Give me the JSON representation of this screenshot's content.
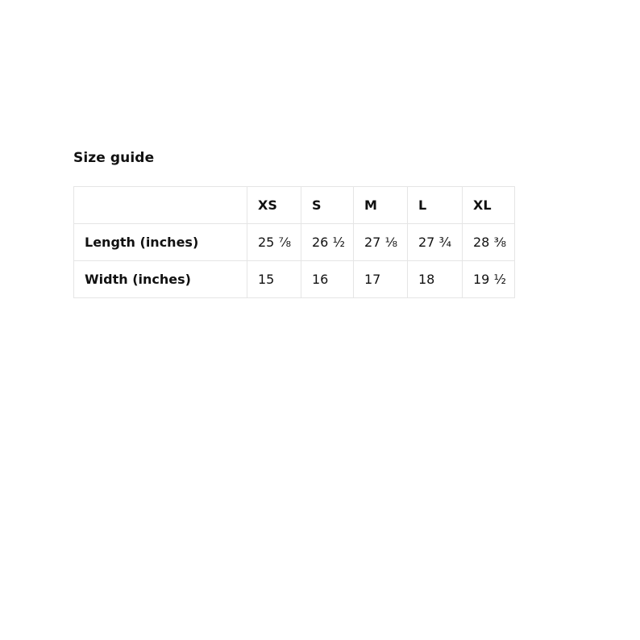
{
  "title": "Size guide",
  "table": {
    "columns": [
      "",
      "XS",
      "S",
      "M",
      "L",
      "XL"
    ],
    "rows": [
      {
        "label": "Length (inches)",
        "values": [
          "25 ⅞",
          "26 ½",
          "27 ⅛",
          "27 ¾",
          "28 ⅜"
        ]
      },
      {
        "label": "Width (inches)",
        "values": [
          "15",
          "16",
          "17",
          "18",
          "19 ½"
        ]
      }
    ]
  },
  "colors": {
    "background": "#ffffff",
    "border": "#e5e5e5",
    "text": "#111111"
  }
}
